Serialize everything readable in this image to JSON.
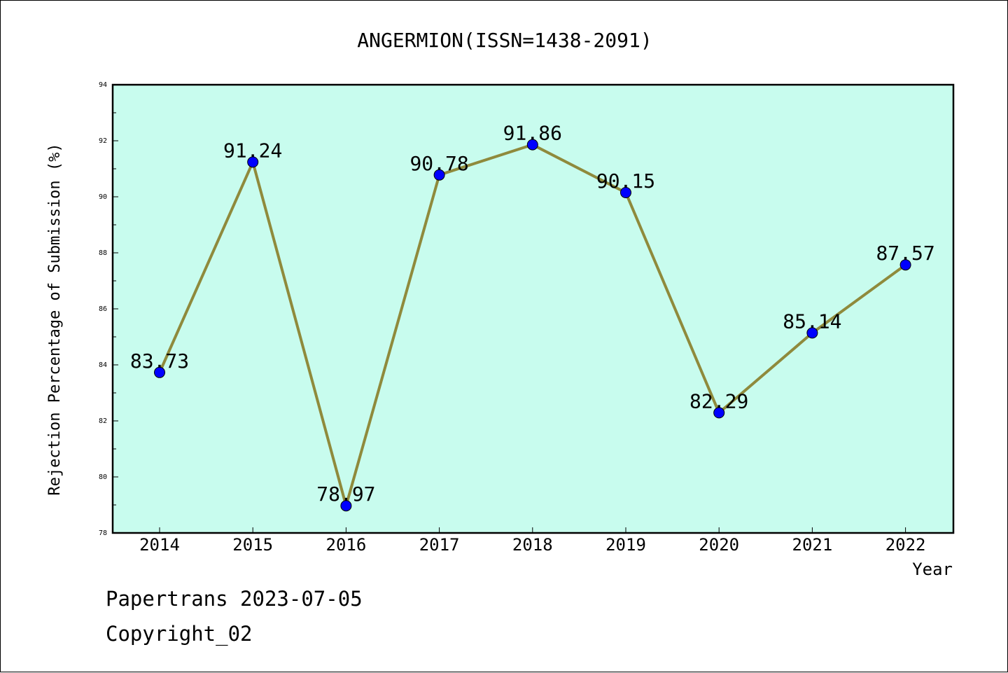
{
  "footer": {
    "line1": "Papertrans 2023-07-05",
    "line2": "Copyright_02"
  },
  "chart_data": {
    "type": "line",
    "title": "ANGERMION(ISSN=1438-2091)",
    "xlabel": "Year",
    "ylabel": "Rejection Percentage of Submission (%)",
    "categories": [
      "2014",
      "2015",
      "2016",
      "2017",
      "2018",
      "2019",
      "2020",
      "2021",
      "2022"
    ],
    "values": [
      83.73,
      91.24,
      78.97,
      90.78,
      91.86,
      90.15,
      82.29,
      85.14,
      87.57
    ],
    "data_labels": [
      "83.73",
      "91.24",
      "78.97",
      "90.78",
      "91.86",
      "90.15",
      "82.29",
      "85.14",
      "87.57"
    ],
    "ylim": [
      78,
      94
    ],
    "yticks": [
      "78",
      "80",
      "82",
      "84",
      "86",
      "88",
      "90",
      "92",
      "94"
    ],
    "grid": false,
    "colors": {
      "plot_background": "#c8fcee",
      "line": "#8f8a3c",
      "marker": "#0000ff"
    }
  }
}
